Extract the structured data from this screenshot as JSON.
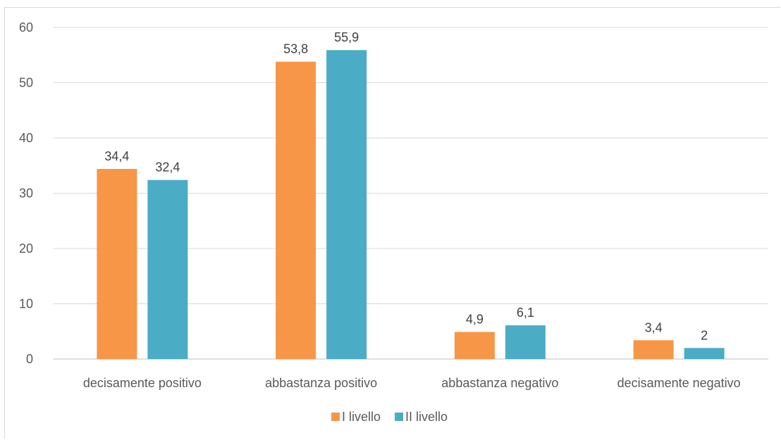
{
  "chart_data": {
    "type": "bar",
    "categories": [
      "decisamente positivo",
      "abbastanza positivo",
      "abbastanza negativo",
      "decisamente negativo"
    ],
    "series": [
      {
        "name": "I livello",
        "values": [
          34.4,
          53.8,
          4.9,
          3.4
        ],
        "labels": [
          "34,4",
          "53,8",
          "4,9",
          "3,4"
        ],
        "color": "#F79646"
      },
      {
        "name": "II livello",
        "values": [
          32.4,
          55.9,
          6.1,
          2
        ],
        "labels": [
          "32,4",
          "55,9",
          "6,1",
          "2"
        ],
        "color": "#4BACC6"
      }
    ],
    "ylim": [
      0,
      60
    ],
    "yticks": [
      0,
      10,
      20,
      30,
      40,
      50,
      60
    ],
    "grid": true,
    "legend_position": "bottom"
  }
}
